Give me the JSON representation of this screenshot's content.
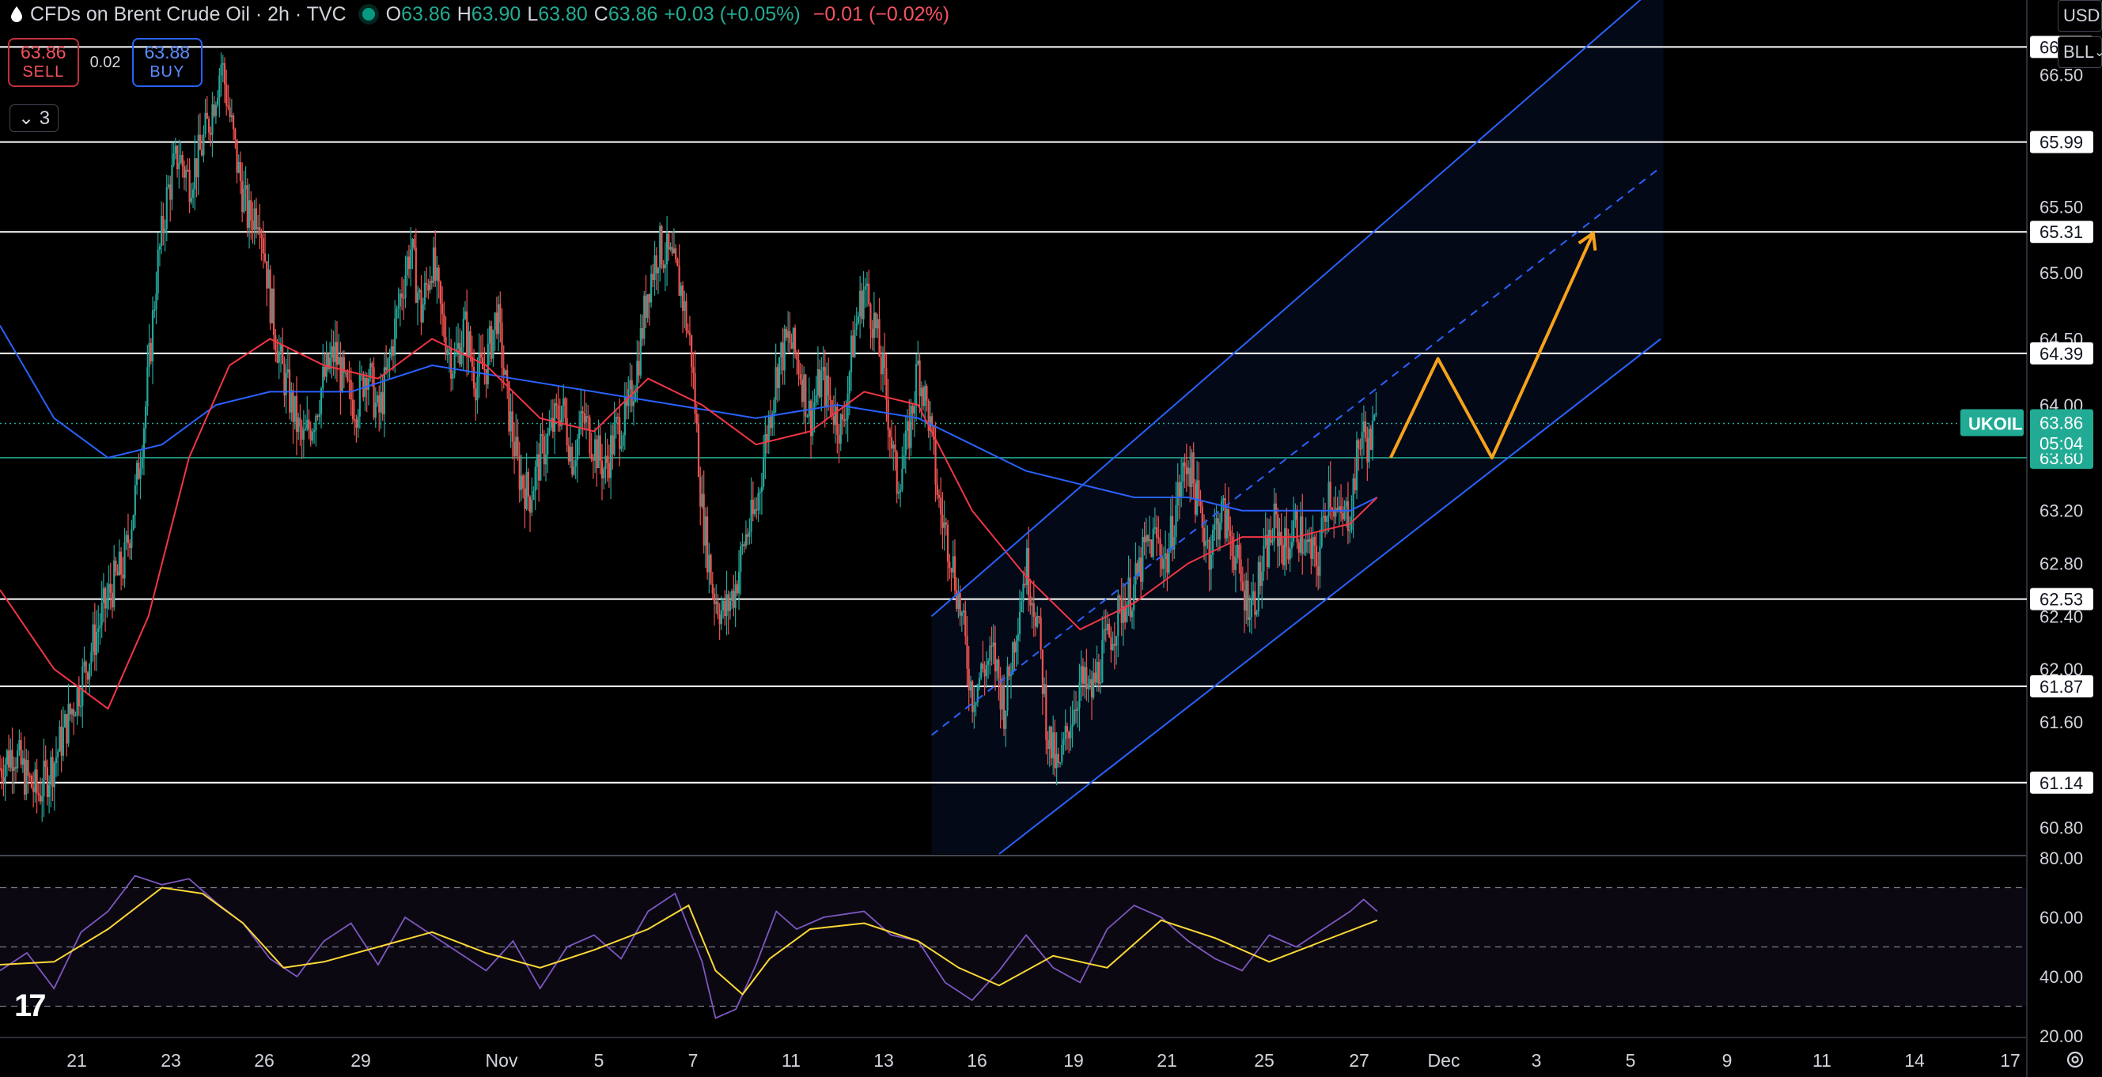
{
  "header": {
    "title": "CFDs on Brent Crude Oil · 2h · TVC",
    "open_label": "O",
    "open": "63.86",
    "high_label": "H",
    "high": "63.90",
    "low_label": "L",
    "low": "63.80",
    "close_label": "C",
    "close": "63.86",
    "change": "+0.03 (+0.05%)",
    "change2": "−0.01 (−0.02%)"
  },
  "trade": {
    "sell_price": "63.86",
    "sell_label": "SELL",
    "spread": "0.02",
    "buy_price": "63.88",
    "buy_label": "BUY"
  },
  "indicators_collapse": {
    "count": "3"
  },
  "currency": "USD",
  "unit": "BLL",
  "colors": {
    "bull": "#26a69a",
    "bear": "#ef5350",
    "ma_red": "#f23645",
    "ma_blue": "#2962ff",
    "channel": "#2962ff",
    "arrow": "#f7a21b",
    "rsi": "#7e57c2",
    "rsi_ma": "#fdd835",
    "price_label_bg": "#22ab94",
    "support_line": "#ffffff"
  },
  "chart_data": [
    {
      "type": "candlestick",
      "symbol": "UKOIL",
      "last_price": 63.86,
      "countdown": "05:04",
      "price_label": "63.60",
      "ylim": [
        60.6,
        66.85
      ],
      "y_ticks": [
        "66.50",
        "65.50",
        "65.00",
        "64.50",
        "64.00",
        "63.20",
        "62.80",
        "62.40",
        "62.00",
        "61.60",
        "60.80"
      ],
      "x_ticks": [
        "21",
        "23",
        "26",
        "29",
        "Nov",
        "5",
        "7",
        "11",
        "13",
        "16",
        "19",
        "21",
        "25",
        "27",
        "Dec",
        "3",
        "5",
        "9",
        "11",
        "14",
        "17"
      ],
      "horizontal_levels": [
        66.71,
        65.99,
        65.31,
        64.39,
        62.53,
        61.87,
        61.14
      ],
      "level_labels": [
        "66.71",
        "65.99",
        "65.31",
        "64.39",
        "62.53",
        "61.87",
        "61.14"
      ],
      "green_level": 63.6,
      "close_path": [
        {
          "x": 0,
          "y": 61.25
        },
        {
          "x": 10,
          "y": 61.4
        },
        {
          "x": 18,
          "y": 61.2
        },
        {
          "x": 28,
          "y": 61.05
        },
        {
          "x": 40,
          "y": 61.3
        },
        {
          "x": 50,
          "y": 61.6
        },
        {
          "x": 60,
          "y": 61.9
        },
        {
          "x": 72,
          "y": 62.3
        },
        {
          "x": 82,
          "y": 62.6
        },
        {
          "x": 92,
          "y": 62.8
        },
        {
          "x": 100,
          "y": 63.3
        },
        {
          "x": 108,
          "y": 64.0
        },
        {
          "x": 116,
          "y": 65.0
        },
        {
          "x": 124,
          "y": 65.6
        },
        {
          "x": 132,
          "y": 65.9
        },
        {
          "x": 140,
          "y": 65.7
        },
        {
          "x": 148,
          "y": 65.9
        },
        {
          "x": 156,
          "y": 66.2
        },
        {
          "x": 164,
          "y": 66.6
        },
        {
          "x": 170,
          "y": 66.2
        },
        {
          "x": 176,
          "y": 65.8
        },
        {
          "x": 184,
          "y": 65.4
        },
        {
          "x": 192,
          "y": 65.5
        },
        {
          "x": 200,
          "y": 64.8
        },
        {
          "x": 208,
          "y": 64.3
        },
        {
          "x": 216,
          "y": 64.0
        },
        {
          "x": 224,
          "y": 63.7
        },
        {
          "x": 232,
          "y": 63.9
        },
        {
          "x": 240,
          "y": 64.2
        },
        {
          "x": 248,
          "y": 64.4
        },
        {
          "x": 256,
          "y": 64.1
        },
        {
          "x": 264,
          "y": 64.0
        },
        {
          "x": 272,
          "y": 64.3
        },
        {
          "x": 280,
          "y": 63.9
        },
        {
          "x": 288,
          "y": 64.3
        },
        {
          "x": 296,
          "y": 64.8
        },
        {
          "x": 304,
          "y": 65.2
        },
        {
          "x": 312,
          "y": 64.7
        },
        {
          "x": 320,
          "y": 65.1
        },
        {
          "x": 328,
          "y": 64.6
        },
        {
          "x": 336,
          "y": 64.3
        },
        {
          "x": 344,
          "y": 64.6
        },
        {
          "x": 352,
          "y": 64.2
        },
        {
          "x": 360,
          "y": 64.3
        },
        {
          "x": 368,
          "y": 64.7
        },
        {
          "x": 376,
          "y": 64.0
        },
        {
          "x": 384,
          "y": 63.5
        },
        {
          "x": 392,
          "y": 63.3
        },
        {
          "x": 400,
          "y": 63.6
        },
        {
          "x": 408,
          "y": 63.8
        },
        {
          "x": 416,
          "y": 64.0
        },
        {
          "x": 424,
          "y": 63.6
        },
        {
          "x": 432,
          "y": 63.9
        },
        {
          "x": 440,
          "y": 63.7
        },
        {
          "x": 448,
          "y": 63.5
        },
        {
          "x": 456,
          "y": 63.8
        },
        {
          "x": 464,
          "y": 63.9
        },
        {
          "x": 472,
          "y": 64.3
        },
        {
          "x": 480,
          "y": 64.9
        },
        {
          "x": 488,
          "y": 65.2
        },
        {
          "x": 496,
          "y": 65.1
        },
        {
          "x": 504,
          "y": 64.9
        },
        {
          "x": 512,
          "y": 64.4
        },
        {
          "x": 520,
          "y": 63.2
        },
        {
          "x": 528,
          "y": 62.6
        },
        {
          "x": 536,
          "y": 62.4
        },
        {
          "x": 544,
          "y": 62.6
        },
        {
          "x": 552,
          "y": 63.0
        },
        {
          "x": 560,
          "y": 63.2
        },
        {
          "x": 568,
          "y": 63.8
        },
        {
          "x": 576,
          "y": 64.3
        },
        {
          "x": 584,
          "y": 64.5
        },
        {
          "x": 592,
          "y": 64.3
        },
        {
          "x": 600,
          "y": 63.9
        },
        {
          "x": 608,
          "y": 64.2
        },
        {
          "x": 616,
          "y": 64.0
        },
        {
          "x": 624,
          "y": 63.8
        },
        {
          "x": 632,
          "y": 64.5
        },
        {
          "x": 640,
          "y": 64.9
        },
        {
          "x": 648,
          "y": 64.6
        },
        {
          "x": 656,
          "y": 64.1
        },
        {
          "x": 664,
          "y": 63.4
        },
        {
          "x": 672,
          "y": 63.7
        },
        {
          "x": 680,
          "y": 64.3
        },
        {
          "x": 688,
          "y": 63.9
        },
        {
          "x": 696,
          "y": 63.2
        },
        {
          "x": 704,
          "y": 62.9
        },
        {
          "x": 712,
          "y": 62.4
        },
        {
          "x": 720,
          "y": 61.8
        },
        {
          "x": 728,
          "y": 62.0
        },
        {
          "x": 736,
          "y": 62.1
        },
        {
          "x": 744,
          "y": 61.7
        },
        {
          "x": 752,
          "y": 62.3
        },
        {
          "x": 760,
          "y": 62.8
        },
        {
          "x": 768,
          "y": 62.4
        },
        {
          "x": 776,
          "y": 61.5
        },
        {
          "x": 784,
          "y": 61.2
        },
        {
          "x": 792,
          "y": 61.6
        },
        {
          "x": 800,
          "y": 61.9
        },
        {
          "x": 808,
          "y": 61.8
        },
        {
          "x": 816,
          "y": 62.1
        },
        {
          "x": 824,
          "y": 62.3
        },
        {
          "x": 832,
          "y": 62.5
        },
        {
          "x": 840,
          "y": 62.6
        },
        {
          "x": 848,
          "y": 62.9
        },
        {
          "x": 856,
          "y": 63.0
        },
        {
          "x": 864,
          "y": 62.8
        },
        {
          "x": 872,
          "y": 63.3
        },
        {
          "x": 880,
          "y": 63.6
        },
        {
          "x": 888,
          "y": 63.2
        },
        {
          "x": 896,
          "y": 62.9
        },
        {
          "x": 904,
          "y": 63.2
        },
        {
          "x": 912,
          "y": 63.0
        },
        {
          "x": 920,
          "y": 62.6
        },
        {
          "x": 928,
          "y": 62.5
        },
        {
          "x": 936,
          "y": 62.8
        },
        {
          "x": 944,
          "y": 63.1
        },
        {
          "x": 952,
          "y": 62.9
        },
        {
          "x": 960,
          "y": 63.1
        },
        {
          "x": 968,
          "y": 62.9
        },
        {
          "x": 976,
          "y": 62.8
        },
        {
          "x": 984,
          "y": 63.4
        },
        {
          "x": 992,
          "y": 63.1
        },
        {
          "x": 1000,
          "y": 63.2
        },
        {
          "x": 1008,
          "y": 63.8
        },
        {
          "x": 1014,
          "y": 63.7
        },
        {
          "x": 1020,
          "y": 63.86
        }
      ],
      "ma_red": [
        {
          "x": 0,
          "y": 62.6
        },
        {
          "x": 40,
          "y": 62.0
        },
        {
          "x": 80,
          "y": 61.7
        },
        {
          "x": 110,
          "y": 62.4
        },
        {
          "x": 140,
          "y": 63.6
        },
        {
          "x": 170,
          "y": 64.3
        },
        {
          "x": 200,
          "y": 64.5
        },
        {
          "x": 240,
          "y": 64.3
        },
        {
          "x": 280,
          "y": 64.2
        },
        {
          "x": 320,
          "y": 64.5
        },
        {
          "x": 360,
          "y": 64.3
        },
        {
          "x": 400,
          "y": 63.9
        },
        {
          "x": 440,
          "y": 63.8
        },
        {
          "x": 480,
          "y": 64.2
        },
        {
          "x": 520,
          "y": 64.0
        },
        {
          "x": 560,
          "y": 63.7
        },
        {
          "x": 600,
          "y": 63.8
        },
        {
          "x": 640,
          "y": 64.1
        },
        {
          "x": 680,
          "y": 64.0
        },
        {
          "x": 720,
          "y": 63.2
        },
        {
          "x": 760,
          "y": 62.7
        },
        {
          "x": 800,
          "y": 62.3
        },
        {
          "x": 840,
          "y": 62.5
        },
        {
          "x": 880,
          "y": 62.8
        },
        {
          "x": 920,
          "y": 63.0
        },
        {
          "x": 960,
          "y": 63.0
        },
        {
          "x": 1000,
          "y": 63.1
        },
        {
          "x": 1020,
          "y": 63.3
        }
      ],
      "ma_blue": [
        {
          "x": 0,
          "y": 64.6
        },
        {
          "x": 40,
          "y": 63.9
        },
        {
          "x": 80,
          "y": 63.6
        },
        {
          "x": 120,
          "y": 63.7
        },
        {
          "x": 160,
          "y": 64.0
        },
        {
          "x": 200,
          "y": 64.1
        },
        {
          "x": 260,
          "y": 64.1
        },
        {
          "x": 320,
          "y": 64.3
        },
        {
          "x": 380,
          "y": 64.2
        },
        {
          "x": 440,
          "y": 64.1
        },
        {
          "x": 500,
          "y": 64.0
        },
        {
          "x": 560,
          "y": 63.9
        },
        {
          "x": 620,
          "y": 64.0
        },
        {
          "x": 680,
          "y": 63.9
        },
        {
          "x": 720,
          "y": 63.7
        },
        {
          "x": 760,
          "y": 63.5
        },
        {
          "x": 800,
          "y": 63.4
        },
        {
          "x": 840,
          "y": 63.3
        },
        {
          "x": 880,
          "y": 63.3
        },
        {
          "x": 920,
          "y": 63.2
        },
        {
          "x": 960,
          "y": 63.2
        },
        {
          "x": 1000,
          "y": 63.2
        },
        {
          "x": 1020,
          "y": 63.3
        }
      ],
      "channel": {
        "lower": [
          {
            "x": 740,
            "y": 60.6
          },
          {
            "x": 1230,
            "y": 64.5
          }
        ],
        "middle": [
          {
            "x": 690,
            "y": 61.5
          },
          {
            "x": 1230,
            "y": 65.8
          }
        ],
        "upper": [
          {
            "x": 690,
            "y": 62.4
          },
          {
            "x": 1230,
            "y": 67.2
          }
        ]
      },
      "projection_arrow": [
        {
          "x": 1030,
          "y": 63.6
        },
        {
          "x": 1065,
          "y": 64.35
        },
        {
          "x": 1105,
          "y": 63.6
        },
        {
          "x": 1180,
          "y": 65.3
        }
      ]
    },
    {
      "type": "line",
      "name": "RSI",
      "ylim": [
        20,
        80
      ],
      "y_ticks": [
        "80.00",
        "60.00",
        "40.00",
        "20.00"
      ],
      "bands": [
        70,
        50,
        30
      ],
      "rsi": [
        {
          "x": 0,
          "y": 42
        },
        {
          "x": 20,
          "y": 48
        },
        {
          "x": 40,
          "y": 36
        },
        {
          "x": 60,
          "y": 55
        },
        {
          "x": 80,
          "y": 62
        },
        {
          "x": 100,
          "y": 74
        },
        {
          "x": 120,
          "y": 71
        },
        {
          "x": 140,
          "y": 73
        },
        {
          "x": 160,
          "y": 65
        },
        {
          "x": 180,
          "y": 58
        },
        {
          "x": 200,
          "y": 46
        },
        {
          "x": 220,
          "y": 40
        },
        {
          "x": 240,
          "y": 52
        },
        {
          "x": 260,
          "y": 58
        },
        {
          "x": 280,
          "y": 44
        },
        {
          "x": 300,
          "y": 60
        },
        {
          "x": 320,
          "y": 54
        },
        {
          "x": 340,
          "y": 48
        },
        {
          "x": 360,
          "y": 42
        },
        {
          "x": 380,
          "y": 52
        },
        {
          "x": 400,
          "y": 36
        },
        {
          "x": 420,
          "y": 50
        },
        {
          "x": 440,
          "y": 54
        },
        {
          "x": 460,
          "y": 46
        },
        {
          "x": 480,
          "y": 62
        },
        {
          "x": 500,
          "y": 68
        },
        {
          "x": 520,
          "y": 45
        },
        {
          "x": 530,
          "y": 26
        },
        {
          "x": 545,
          "y": 29
        },
        {
          "x": 560,
          "y": 44
        },
        {
          "x": 575,
          "y": 62
        },
        {
          "x": 590,
          "y": 56
        },
        {
          "x": 610,
          "y": 60
        },
        {
          "x": 640,
          "y": 62
        },
        {
          "x": 660,
          "y": 54
        },
        {
          "x": 680,
          "y": 52
        },
        {
          "x": 700,
          "y": 38
        },
        {
          "x": 720,
          "y": 32
        },
        {
          "x": 740,
          "y": 42
        },
        {
          "x": 760,
          "y": 54
        },
        {
          "x": 780,
          "y": 43
        },
        {
          "x": 800,
          "y": 38
        },
        {
          "x": 820,
          "y": 56
        },
        {
          "x": 840,
          "y": 64
        },
        {
          "x": 860,
          "y": 60
        },
        {
          "x": 880,
          "y": 52
        },
        {
          "x": 900,
          "y": 46
        },
        {
          "x": 920,
          "y": 42
        },
        {
          "x": 940,
          "y": 54
        },
        {
          "x": 960,
          "y": 50
        },
        {
          "x": 980,
          "y": 56
        },
        {
          "x": 1000,
          "y": 62
        },
        {
          "x": 1010,
          "y": 66
        },
        {
          "x": 1020,
          "y": 62
        }
      ],
      "rsi_ma": [
        {
          "x": 0,
          "y": 44
        },
        {
          "x": 40,
          "y": 45
        },
        {
          "x": 80,
          "y": 56
        },
        {
          "x": 120,
          "y": 70
        },
        {
          "x": 150,
          "y": 68
        },
        {
          "x": 180,
          "y": 58
        },
        {
          "x": 210,
          "y": 43
        },
        {
          "x": 240,
          "y": 45
        },
        {
          "x": 280,
          "y": 50
        },
        {
          "x": 320,
          "y": 55
        },
        {
          "x": 360,
          "y": 48
        },
        {
          "x": 400,
          "y": 43
        },
        {
          "x": 440,
          "y": 49
        },
        {
          "x": 480,
          "y": 56
        },
        {
          "x": 510,
          "y": 64
        },
        {
          "x": 530,
          "y": 42
        },
        {
          "x": 550,
          "y": 34
        },
        {
          "x": 570,
          "y": 46
        },
        {
          "x": 600,
          "y": 56
        },
        {
          "x": 640,
          "y": 58
        },
        {
          "x": 680,
          "y": 52
        },
        {
          "x": 710,
          "y": 43
        },
        {
          "x": 740,
          "y": 37
        },
        {
          "x": 780,
          "y": 47
        },
        {
          "x": 820,
          "y": 43
        },
        {
          "x": 860,
          "y": 59
        },
        {
          "x": 900,
          "y": 53
        },
        {
          "x": 940,
          "y": 45
        },
        {
          "x": 980,
          "y": 52
        },
        {
          "x": 1020,
          "y": 59
        }
      ]
    }
  ]
}
